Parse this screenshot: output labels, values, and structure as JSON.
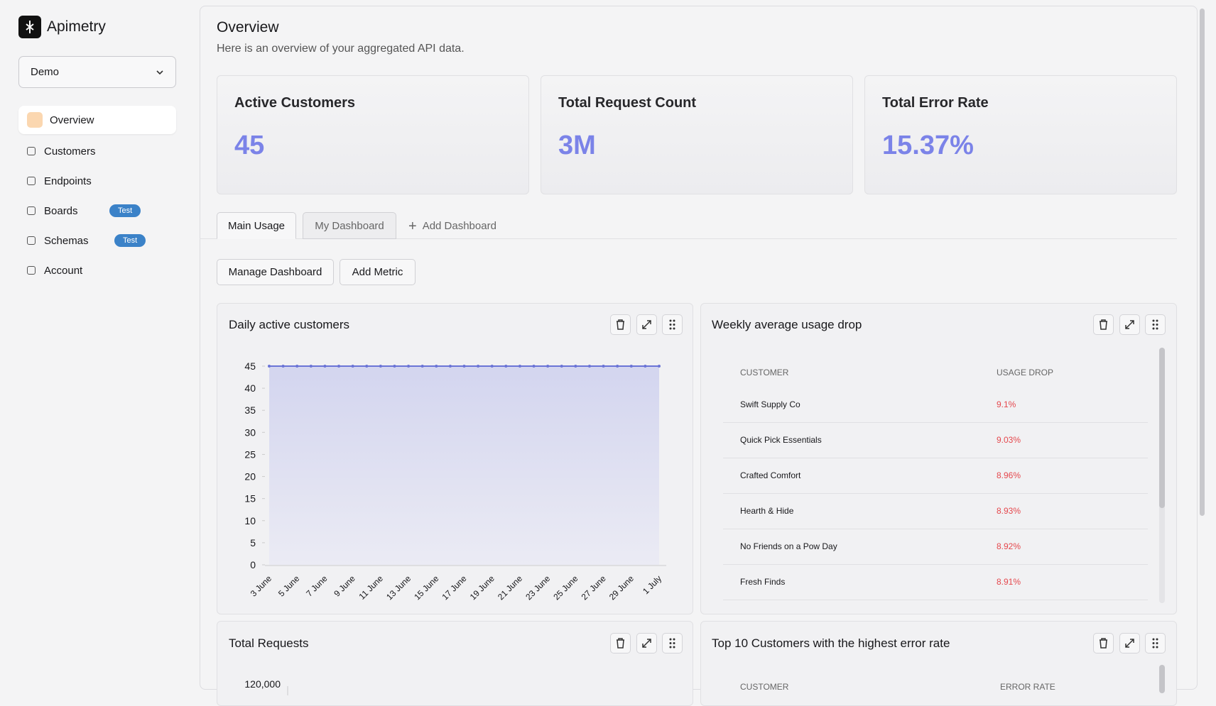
{
  "sidebar": {
    "brand": "Apimetry",
    "workspace": "Demo",
    "nav": [
      {
        "label": "Overview"
      },
      {
        "label": "Customers"
      },
      {
        "label": "Endpoints"
      },
      {
        "label": "Boards",
        "badge": "Test"
      },
      {
        "label": "Schemas",
        "badge": "Test"
      },
      {
        "label": "Account"
      }
    ]
  },
  "header": {
    "title": "Overview",
    "subtitle": "Here is an overview of your aggregated API data."
  },
  "stats": [
    {
      "label": "Active Customers",
      "value": "45"
    },
    {
      "label": "Total Request Count",
      "value": "3M"
    },
    {
      "label": "Total Error Rate",
      "value": "15.37%"
    }
  ],
  "tabs": [
    "Main Usage",
    "My Dashboard",
    "Add Dashboard"
  ],
  "buttons": [
    "Manage Dashboard",
    "Add Metric"
  ],
  "tables": [
    {
      "title": "Weekly average usage drop",
      "columns": [
        "CUSTOMER",
        "USAGE DROP"
      ],
      "rows": [
        [
          "Swift Supply Co",
          "9.1%"
        ],
        [
          "Quick Pick Essentials",
          "9.03%"
        ],
        [
          "Crafted Comfort",
          "8.96%"
        ],
        [
          "Hearth & Hide",
          "8.93%"
        ],
        [
          "No Friends on a Pow Day",
          "8.92%"
        ],
        [
          "Fresh Finds",
          "8.91%"
        ]
      ]
    },
    {
      "title": "Top 10 Customers with the highest error rate",
      "columns": [
        "CUSTOMER",
        "ERROR RATE"
      ],
      "rows": []
    }
  ],
  "chart_data": [
    {
      "type": "area",
      "title": "Daily active customers",
      "color": "#6b74d6",
      "categories": [
        "3 June",
        null,
        "5 June",
        null,
        "7 June",
        null,
        "9 June",
        null,
        "11 June",
        null,
        "13 June",
        null,
        "15 June",
        null,
        "17 June",
        null,
        "19 June",
        null,
        "21 June",
        null,
        "23 June",
        null,
        "25 June",
        null,
        "27 June",
        null,
        "29 June",
        null,
        "1 July"
      ],
      "values": [
        45,
        45,
        45,
        45,
        45,
        45,
        45,
        45,
        45,
        45,
        45,
        45,
        45,
        45,
        45,
        45,
        45,
        45,
        45,
        45,
        45,
        45,
        45,
        45,
        45,
        45,
        45,
        45,
        45
      ],
      "ylim": [
        0,
        45
      ],
      "yticks": [
        0,
        5,
        10,
        15,
        20,
        25,
        30,
        35,
        40,
        45
      ]
    },
    {
      "type": "line",
      "title": "Total Requests",
      "yticks": [
        {
          "value": 120000,
          "label": "120,000"
        }
      ]
    }
  ]
}
